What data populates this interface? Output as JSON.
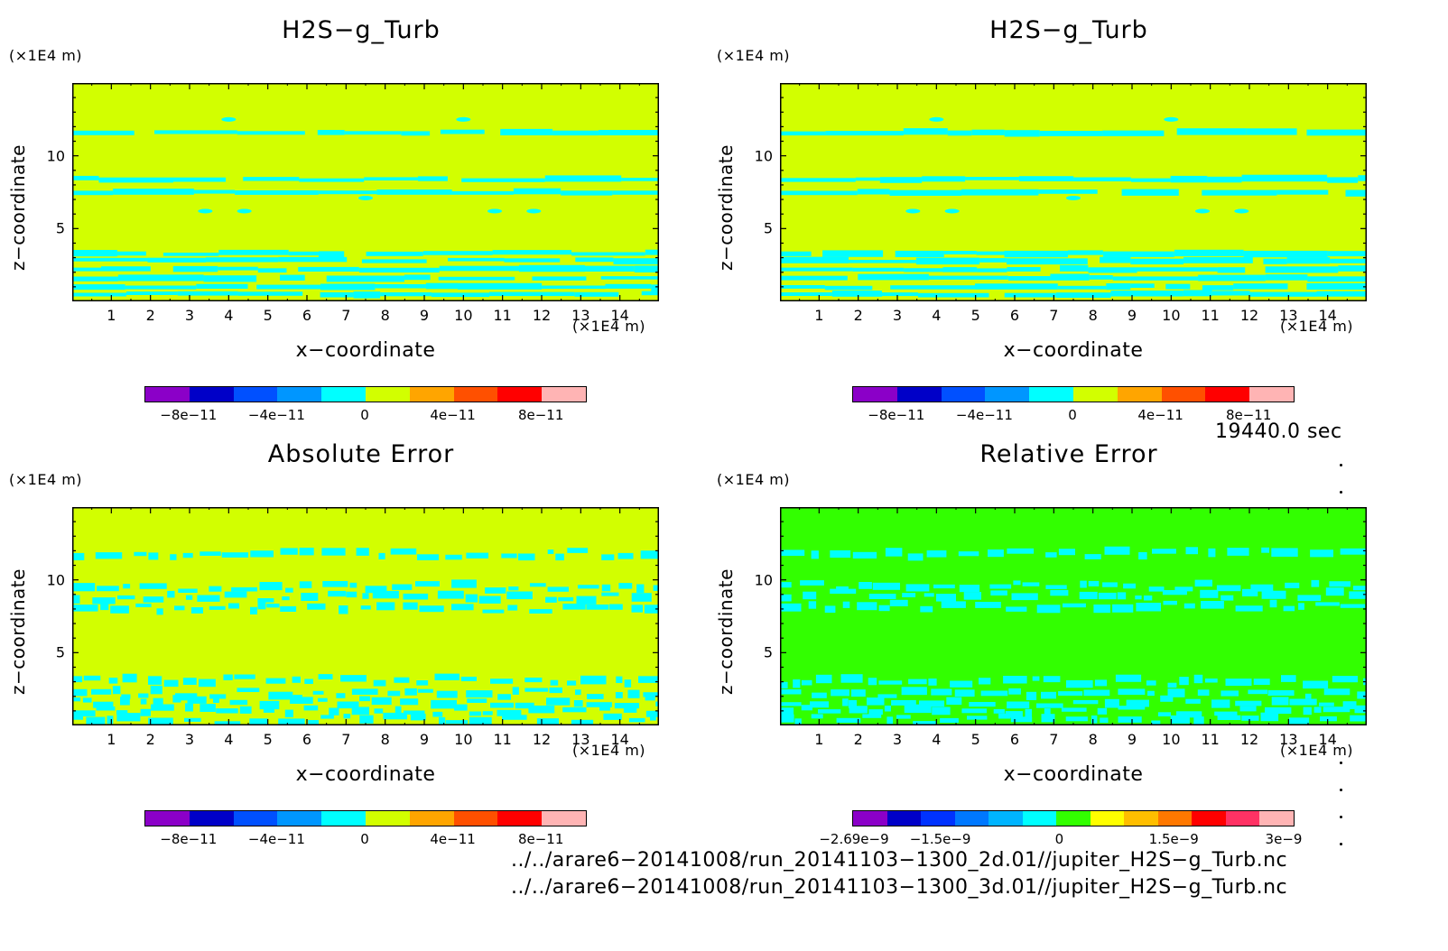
{
  "colors": {
    "standard": [
      "#8b00c8",
      "#0000c8",
      "#0050ff",
      "#0096ff",
      "#00ffff",
      "#d2ff00",
      "#ffa500",
      "#ff5000",
      "#ff0000",
      "#ffb4b4"
    ],
    "relative": [
      "#8b00c8",
      "#0000c8",
      "#0032ff",
      "#0078ff",
      "#00b4ff",
      "#00ffff",
      "#32ff00",
      "#ffff00",
      "#ffbe00",
      "#ff7800",
      "#ff0000",
      "#ff3264",
      "#ffb4b4"
    ]
  },
  "panels": [
    {
      "title": "H2S−g_Turb",
      "xunit": "(×1E4 m)",
      "yunit": "(×1E4 m)",
      "xlabel": "x−coordinate",
      "ylabel": "z−coordinate",
      "bg": "#d2ff00",
      "band_color": "#00ffff",
      "cbar_palette": "standard",
      "cbar_labels": [
        "−8e−11",
        "−4e−11",
        "0",
        "4e−11",
        "8e−11"
      ]
    },
    {
      "title": "H2S−g_Turb",
      "xunit": "(×1E4 m)",
      "yunit": "(×1E4 m)",
      "xlabel": "x−coordinate",
      "ylabel": "z−coordinate",
      "bg": "#d2ff00",
      "band_color": "#00ffff",
      "cbar_palette": "standard",
      "cbar_labels": [
        "−8e−11",
        "−4e−11",
        "0",
        "4e−11",
        "8e−11"
      ]
    },
    {
      "title": "Absolute Error",
      "xunit": "(×1E4 m)",
      "yunit": "(×1E4 m)",
      "xlabel": "x−coordinate",
      "ylabel": "z−coordinate",
      "bg": "#d2ff00",
      "band_color": "#00ffff",
      "cbar_palette": "standard",
      "cbar_labels": [
        "−8e−11",
        "−4e−11",
        "0",
        "4e−11",
        "8e−11"
      ]
    },
    {
      "title": "Relative Error",
      "xunit": "(×1E4 m)",
      "yunit": "(×1E4 m)",
      "xlabel": "x−coordinate",
      "ylabel": "z−coordinate",
      "bg": "#32ff00",
      "band_color": "#00ffff",
      "cbar_palette": "relative",
      "cbar_labels": [
        "−2.69e−9",
        "−1.5e−9",
        "0",
        "1.5e−9",
        "3e−9"
      ]
    }
  ],
  "time_label": "19440.0 sec",
  "file_paths": [
    "../../arare6−20141008/run_20141103−1300_2d.01//jupiter_H2S−g_Turb.nc",
    "../../arare6−20141008/run_20141103−1300_3d.01//jupiter_H2S−g_Turb.nc"
  ],
  "chart_data": [
    {
      "type": "heatmap",
      "title": "H2S−g_Turb",
      "xlabel": "x−coordinate",
      "ylabel": "z−coordinate",
      "x_unit": "(×1E4 m)",
      "y_unit": "(×1E4 m)",
      "xlim": [
        0,
        15
      ],
      "ylim": [
        0,
        15
      ],
      "x_ticks": [
        1,
        2,
        3,
        4,
        5,
        6,
        7,
        8,
        9,
        10,
        11,
        12,
        13,
        14
      ],
      "y_ticks": [
        5,
        10
      ],
      "colorbar_ticks": [
        "−8e−11",
        "−4e−11",
        "0",
        "4e−11",
        "8e−11"
      ],
      "colorbar_range": [
        -1e-10,
        1e-10
      ],
      "bands_z": [
        0.5,
        1.0,
        1.6,
        2.2,
        2.8,
        3.3,
        7.5,
        8.4,
        11.6
      ]
    },
    {
      "type": "heatmap",
      "title": "H2S−g_Turb",
      "xlabel": "x−coordinate",
      "ylabel": "z−coordinate",
      "x_unit": "(×1E4 m)",
      "y_unit": "(×1E4 m)",
      "xlim": [
        0,
        15
      ],
      "ylim": [
        0,
        15
      ],
      "x_ticks": [
        1,
        2,
        3,
        4,
        5,
        6,
        7,
        8,
        9,
        10,
        11,
        12,
        13,
        14
      ],
      "y_ticks": [
        5,
        10
      ],
      "colorbar_ticks": [
        "−8e−11",
        "−4e−11",
        "0",
        "4e−11",
        "8e−11"
      ],
      "colorbar_range": [
        -1e-10,
        1e-10
      ],
      "bands_z": [
        0.5,
        1.0,
        1.6,
        2.2,
        2.8,
        3.3,
        7.5,
        8.4,
        11.6
      ]
    },
    {
      "type": "heatmap",
      "title": "Absolute Error",
      "xlabel": "x−coordinate",
      "ylabel": "z−coordinate",
      "x_unit": "(×1E4 m)",
      "y_unit": "(×1E4 m)",
      "xlim": [
        0,
        15
      ],
      "ylim": [
        0,
        15
      ],
      "x_ticks": [
        1,
        2,
        3,
        4,
        5,
        6,
        7,
        8,
        9,
        10,
        11,
        12,
        13,
        14
      ],
      "y_ticks": [
        5,
        10
      ],
      "colorbar_ticks": [
        "−8e−11",
        "−4e−11",
        "0",
        "4e−11",
        "8e−11"
      ],
      "colorbar_range": [
        -1e-10,
        1e-10
      ],
      "bands_z": [
        0.4,
        1.0,
        1.6,
        2.2,
        3.1,
        8.0,
        8.8,
        9.5,
        11.8
      ]
    },
    {
      "type": "heatmap",
      "title": "Relative Error",
      "xlabel": "x−coordinate",
      "ylabel": "z−coordinate",
      "x_unit": "(×1E4 m)",
      "y_unit": "(×1E4 m)",
      "xlim": [
        0,
        15
      ],
      "ylim": [
        0,
        15
      ],
      "x_ticks": [
        1,
        2,
        3,
        4,
        5,
        6,
        7,
        8,
        9,
        10,
        11,
        12,
        13,
        14
      ],
      "y_ticks": [
        5,
        10
      ],
      "colorbar_ticks": [
        "−2.69e−9",
        "−1.5e−9",
        "0",
        "1.5e−9",
        "3e−9"
      ],
      "colorbar_range": [
        -2.69e-09,
        3e-09
      ],
      "bands_z": [
        0.4,
        1.0,
        1.6,
        2.2,
        3.0,
        8.2,
        9.0,
        9.6,
        11.8
      ]
    }
  ]
}
